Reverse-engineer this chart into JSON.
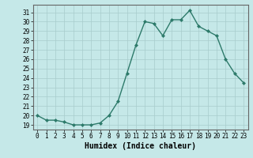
{
  "x": [
    0,
    1,
    2,
    3,
    4,
    5,
    6,
    7,
    8,
    9,
    10,
    11,
    12,
    13,
    14,
    15,
    16,
    17,
    18,
    19,
    20,
    21,
    22,
    23
  ],
  "y": [
    20.0,
    19.5,
    19.5,
    19.3,
    19.0,
    19.0,
    19.0,
    19.2,
    20.0,
    21.5,
    24.5,
    27.5,
    30.0,
    29.8,
    28.5,
    30.2,
    30.2,
    31.2,
    29.5,
    29.0,
    28.5,
    26.0,
    24.5,
    23.5
  ],
  "line_color": "#2d7a6a",
  "marker": "D",
  "marker_size": 2.0,
  "bg_color": "#c5e8e8",
  "grid_color": "#a8cccc",
  "xlabel": "Humidex (Indice chaleur)",
  "xlim": [
    -0.5,
    23.5
  ],
  "ylim": [
    18.5,
    31.8
  ],
  "yticks": [
    19,
    20,
    21,
    22,
    23,
    24,
    25,
    26,
    27,
    28,
    29,
    30,
    31
  ],
  "xticks": [
    0,
    1,
    2,
    3,
    4,
    5,
    6,
    7,
    8,
    9,
    10,
    11,
    12,
    13,
    14,
    15,
    16,
    17,
    18,
    19,
    20,
    21,
    22,
    23
  ],
  "xlabel_fontsize": 7.0,
  "tick_fontsize": 5.5,
  "linewidth": 1.0
}
